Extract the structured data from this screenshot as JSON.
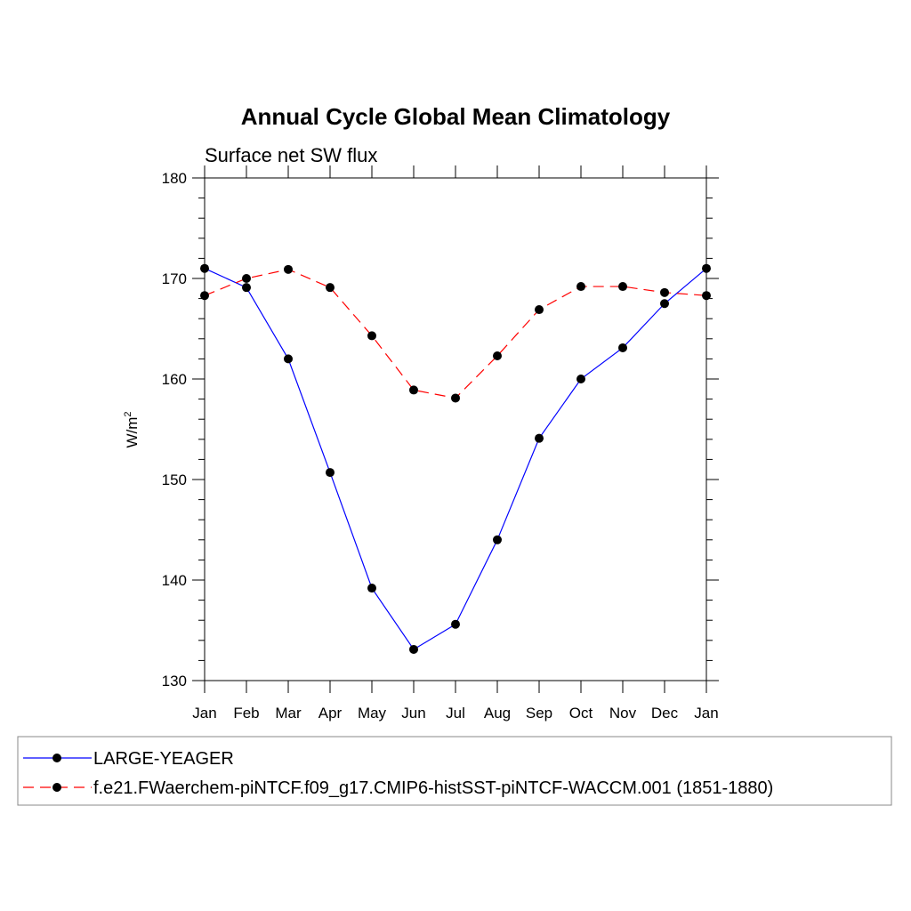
{
  "chart_data": {
    "type": "line",
    "title": "Annual Cycle Global Mean Climatology",
    "subtitle": "Surface net SW flux",
    "ylabel": "W/m",
    "ylabel_superscript": "2",
    "xlabel": "",
    "categories": [
      "Jan",
      "Feb",
      "Mar",
      "Apr",
      "May",
      "Jun",
      "Jul",
      "Aug",
      "Sep",
      "Oct",
      "Nov",
      "Dec",
      "Jan"
    ],
    "ylim": [
      130,
      180
    ],
    "yticks": [
      130,
      140,
      150,
      160,
      170,
      180
    ],
    "grid": false,
    "legend_position": "bottom",
    "series": [
      {
        "name": "LARGE-YEAGER",
        "color": "#0000ff",
        "dash": "solid",
        "marker": "filled-circle",
        "values": [
          171.0,
          169.1,
          162.0,
          150.7,
          139.2,
          133.1,
          135.6,
          144.0,
          154.1,
          160.0,
          163.1,
          167.5,
          171.0
        ]
      },
      {
        "name": "f.e21.FWaerchem-piNTCF.f09_g17.CMIP6-histSST-piNTCF-WACCM.001 (1851-1880)",
        "color": "#ff0000",
        "dash": "dashed",
        "marker": "filled-circle",
        "values": [
          168.3,
          170.0,
          170.9,
          169.1,
          164.3,
          158.9,
          158.1,
          162.3,
          166.9,
          169.2,
          169.2,
          168.6,
          168.3
        ]
      }
    ]
  }
}
